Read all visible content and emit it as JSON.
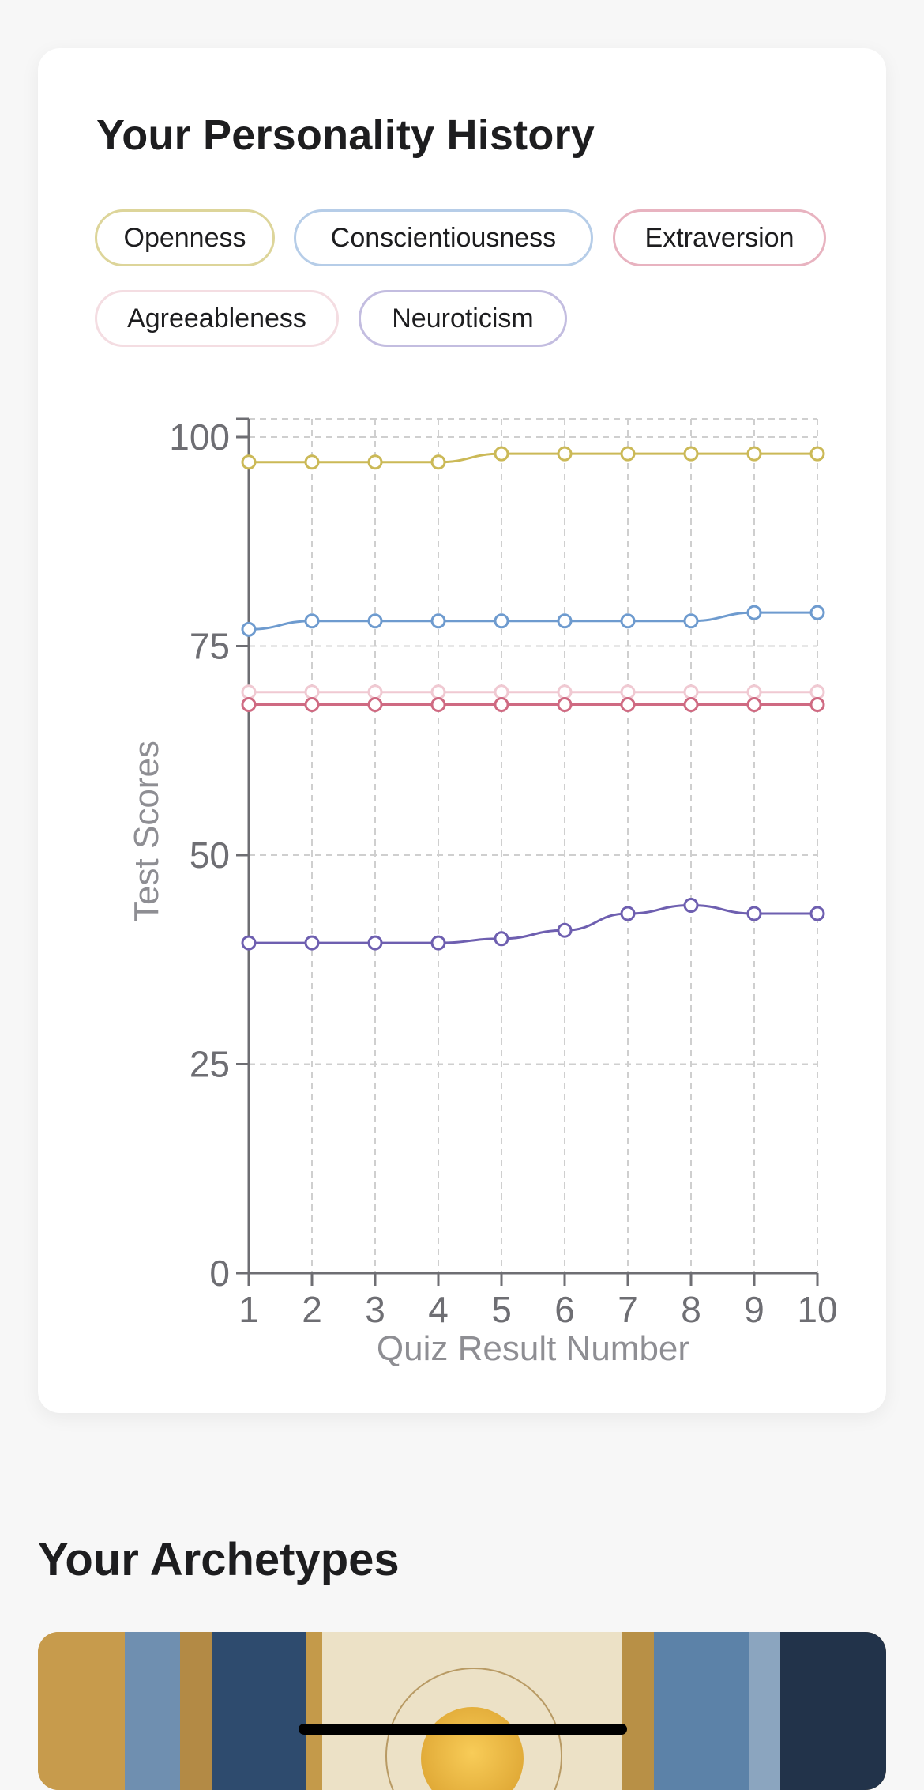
{
  "history_card": {
    "title": "Your Personality History"
  },
  "traits": [
    {
      "label": "Openness",
      "color": "#cbb957",
      "border": "#ddd59a"
    },
    {
      "label": "Conscientiousness",
      "color": "#6e9bcf",
      "border": "#b6cde8"
    },
    {
      "label": "Extraversion",
      "color": "#cf6a82",
      "border": "#e8b3c0"
    },
    {
      "label": "Agreeableness",
      "color": "#f0c9d2",
      "border": "#f4dde2"
    },
    {
      "label": "Neuroticism",
      "color": "#6e5fb0",
      "border": "#c3bde0"
    }
  ],
  "chart_data": {
    "type": "line",
    "xlabel": "Quiz Result Number",
    "ylabel": "Test Scores",
    "x": [
      1,
      2,
      3,
      4,
      5,
      6,
      7,
      8,
      9,
      10
    ],
    "xlim": [
      1,
      10
    ],
    "ylim": [
      0,
      100
    ],
    "yticks": [
      0,
      25,
      50,
      75,
      100
    ],
    "grid": true,
    "series": [
      {
        "name": "Openness",
        "color": "#cbb957",
        "values": [
          97,
          97,
          97,
          97,
          98,
          98,
          98,
          98,
          98,
          98
        ]
      },
      {
        "name": "Conscientiousness",
        "color": "#6e9bcf",
        "values": [
          77,
          78,
          78,
          78,
          78,
          78,
          78,
          78,
          79,
          79
        ]
      },
      {
        "name": "Agreeableness",
        "color": "#f0c9d2",
        "values": [
          69.5,
          69.5,
          69.5,
          69.5,
          69.5,
          69.5,
          69.5,
          69.5,
          69.5,
          69.5
        ]
      },
      {
        "name": "Extraversion",
        "color": "#cf6a82",
        "values": [
          68,
          68,
          68,
          68,
          68,
          68,
          68,
          68,
          68,
          68
        ]
      },
      {
        "name": "Neuroticism",
        "color": "#6e5fb0",
        "values": [
          39.5,
          39.5,
          39.5,
          39.5,
          40,
          41,
          43,
          44,
          43,
          43
        ]
      }
    ]
  },
  "archetypes": {
    "title": "Your Archetypes"
  }
}
